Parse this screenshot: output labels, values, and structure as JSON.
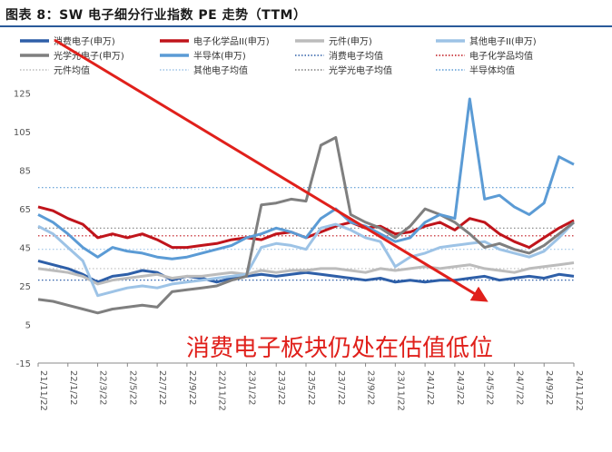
{
  "chart_data": {
    "type": "line",
    "title": "图表 8：SW 电子细分行业指数 PE 走势（TTM）",
    "ylim": [
      -15,
      130
    ],
    "yticks": [
      125,
      105,
      85,
      65,
      45,
      25,
      5,
      -15
    ],
    "xticks": [
      "21/11/22",
      "22/1/22",
      "22/3/22",
      "22/5/22",
      "22/7/22",
      "22/9/22",
      "22/11/22",
      "23/1/22",
      "23/3/22",
      "23/5/22",
      "23/7/22",
      "23/9/22",
      "23/11/22",
      "24/1/22",
      "24/3/22",
      "24/5/22",
      "24/7/22",
      "24/9/22",
      "24/11/22"
    ],
    "x_range": [
      0,
      36
    ],
    "grid": false,
    "legend_position": "top",
    "annotation": "消费电子板块仍处在估值低位",
    "series": [
      {
        "name": "消费电子(申万)",
        "color": "#2e5fa8",
        "style": "solid",
        "x": [
          0,
          1,
          2,
          3,
          4,
          5,
          6,
          7,
          8,
          9,
          10,
          11,
          12,
          13,
          14,
          15,
          16,
          17,
          18,
          19,
          20,
          21,
          22,
          23,
          24,
          25,
          26,
          27,
          28,
          29,
          30,
          31,
          32,
          33,
          34,
          35,
          36
        ],
        "values": [
          38,
          36,
          34,
          31,
          27,
          30,
          31,
          33,
          32,
          28,
          30,
          29,
          27,
          29,
          30,
          31,
          30,
          31,
          32,
          31,
          30,
          29,
          28,
          29,
          27,
          28,
          27,
          28,
          28,
          29,
          30,
          28,
          29,
          30,
          29,
          31,
          30
        ]
      },
      {
        "name": "电子化学品II(申万)",
        "color": "#c0141b",
        "style": "solid",
        "x": [
          0,
          1,
          2,
          3,
          4,
          5,
          6,
          7,
          8,
          9,
          10,
          11,
          12,
          13,
          14,
          15,
          16,
          17,
          18,
          19,
          20,
          21,
          22,
          23,
          24,
          25,
          26,
          27,
          28,
          29,
          30,
          31,
          32,
          33,
          34,
          35,
          36
        ],
        "values": [
          66,
          64,
          60,
          57,
          50,
          52,
          50,
          52,
          49,
          45,
          45,
          46,
          47,
          49,
          50,
          49,
          52,
          53,
          50,
          53,
          56,
          58,
          55,
          56,
          52,
          53,
          56,
          58,
          54,
          60,
          58,
          52,
          48,
          45,
          50,
          55,
          59
        ]
      },
      {
        "name": "元件(申万)",
        "color": "#bcbcbc",
        "style": "solid",
        "x": [
          0,
          1,
          2,
          3,
          4,
          5,
          6,
          7,
          8,
          9,
          10,
          11,
          12,
          13,
          14,
          15,
          16,
          17,
          18,
          19,
          20,
          21,
          22,
          23,
          24,
          25,
          26,
          27,
          28,
          29,
          30,
          31,
          32,
          33,
          34,
          35,
          36
        ],
        "values": [
          34,
          33,
          32,
          30,
          26,
          28,
          29,
          30,
          31,
          29,
          30,
          30,
          31,
          32,
          31,
          33,
          32,
          33,
          33,
          34,
          34,
          33,
          32,
          34,
          33,
          34,
          35,
          34,
          35,
          36,
          34,
          33,
          32,
          34,
          35,
          36,
          37
        ]
      },
      {
        "name": "其他电子II(申万)",
        "color": "#9dc3e6",
        "style": "solid",
        "x": [
          0,
          1,
          2,
          3,
          4,
          5,
          6,
          7,
          8,
          9,
          10,
          11,
          12,
          13,
          14,
          15,
          16,
          17,
          18,
          19,
          20,
          21,
          22,
          23,
          24,
          25,
          26,
          27,
          28,
          29,
          30,
          31,
          32,
          33,
          34,
          35,
          36
        ],
        "values": [
          56,
          52,
          45,
          38,
          20,
          22,
          24,
          25,
          24,
          26,
          27,
          28,
          29,
          30,
          31,
          45,
          47,
          46,
          44,
          55,
          57,
          54,
          50,
          48,
          35,
          40,
          42,
          45,
          46,
          47,
          48,
          44,
          42,
          40,
          43,
          50,
          58
        ]
      },
      {
        "name": "光学光电子(申万)",
        "color": "#7f7f7f",
        "style": "solid",
        "x": [
          0,
          1,
          2,
          3,
          4,
          5,
          6,
          7,
          8,
          9,
          10,
          11,
          12,
          13,
          14,
          15,
          16,
          17,
          18,
          19,
          20,
          21,
          22,
          23,
          24,
          25,
          26,
          27,
          28,
          29,
          30,
          31,
          32,
          33,
          34,
          35,
          36
        ],
        "values": [
          18,
          17,
          15,
          13,
          11,
          13,
          14,
          15,
          14,
          22,
          23,
          24,
          25,
          28,
          30,
          67,
          68,
          70,
          69,
          98,
          102,
          62,
          58,
          55,
          50,
          56,
          65,
          62,
          58,
          52,
          45,
          47,
          44,
          42,
          46,
          52,
          58
        ]
      },
      {
        "name": "半导体(申万)",
        "color": "#5b9bd5",
        "style": "solid",
        "x": [
          0,
          1,
          2,
          3,
          4,
          5,
          6,
          7,
          8,
          9,
          10,
          11,
          12,
          13,
          14,
          15,
          16,
          17,
          18,
          19,
          20,
          21,
          22,
          23,
          24,
          25,
          26,
          27,
          28,
          29,
          30,
          31,
          32,
          33,
          34,
          35,
          36
        ],
        "values": [
          62,
          58,
          52,
          45,
          40,
          45,
          43,
          42,
          40,
          39,
          40,
          42,
          44,
          46,
          50,
          52,
          55,
          53,
          50,
          60,
          65,
          58,
          56,
          52,
          48,
          50,
          58,
          62,
          60,
          122,
          70,
          72,
          66,
          62,
          68,
          92,
          88
        ]
      },
      {
        "name": "消费电子均值",
        "color": "#2e5fa8",
        "style": "dotted",
        "x": [
          0,
          36
        ],
        "values": [
          28,
          28
        ]
      },
      {
        "name": "电子化学品均值",
        "color": "#c0141b",
        "style": "dotted",
        "x": [
          0,
          36
        ],
        "values": [
          51,
          51
        ]
      },
      {
        "name": "元件均值",
        "color": "#bcbcbc",
        "style": "dotted",
        "x": [
          0,
          36
        ],
        "values": [
          34,
          34
        ]
      },
      {
        "name": "其他电子均值",
        "color": "#9dc3e6",
        "style": "dotted",
        "x": [
          0,
          36
        ],
        "values": [
          44,
          44
        ]
      },
      {
        "name": "光学光电子均值",
        "color": "#7f7f7f",
        "style": "dotted",
        "x": [
          0,
          36
        ],
        "values": [
          55,
          55
        ]
      },
      {
        "name": "半导体均值",
        "color": "#5b9bd5",
        "style": "dotted",
        "x": [
          0,
          36
        ],
        "values": [
          76,
          76
        ]
      }
    ]
  }
}
